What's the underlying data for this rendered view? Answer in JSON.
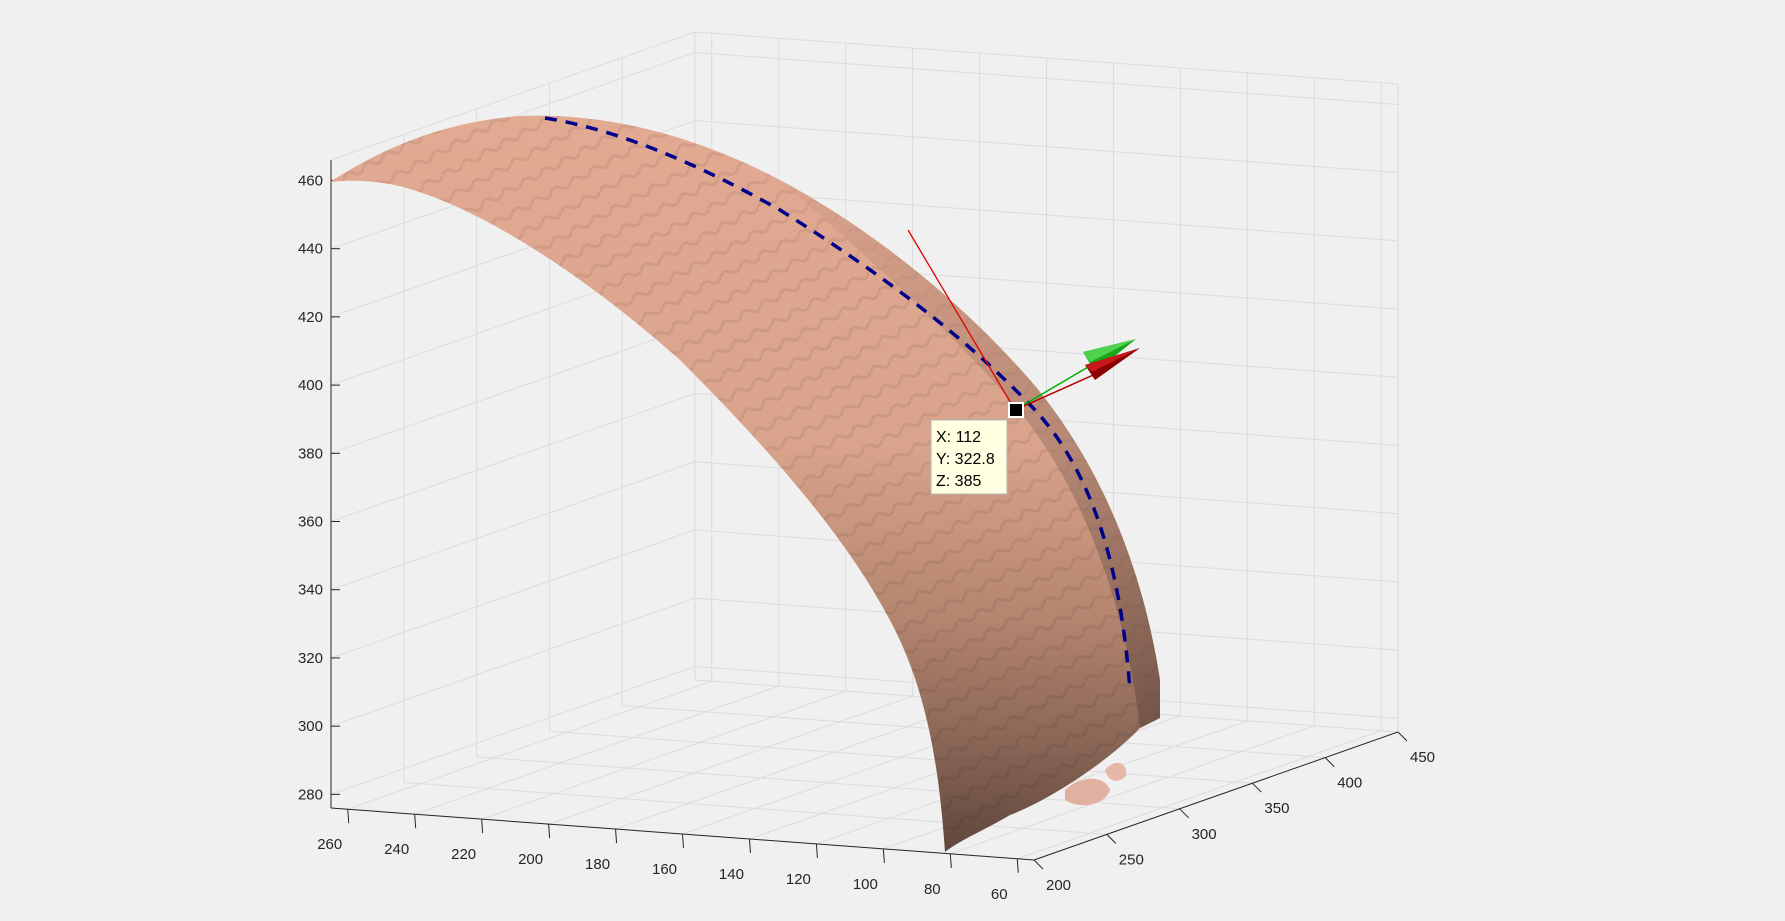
{
  "chart_data": {
    "type": "surface",
    "title": "",
    "xlabel": "",
    "ylabel": "",
    "zlabel": "",
    "grid": true,
    "axes": {
      "x": {
        "ticks": [
          60,
          80,
          100,
          120,
          140,
          160,
          180,
          200,
          220,
          240,
          260
        ],
        "range": [
          55,
          265
        ],
        "direction": "reversed"
      },
      "y": {
        "ticks": [
          200,
          250,
          300,
          350,
          400,
          450
        ],
        "range": [
          200,
          450
        ]
      },
      "z": {
        "ticks": [
          280,
          300,
          320,
          340,
          360,
          380,
          400,
          420,
          440,
          460
        ],
        "range": [
          276,
          466
        ]
      }
    },
    "series": [
      {
        "kind": "surface",
        "color": "#e2a890",
        "shade_color": "#6e5248"
      },
      {
        "kind": "dashed-curve",
        "color": "#00008b"
      },
      {
        "kind": "vector",
        "color": "#00aa00"
      },
      {
        "kind": "vector",
        "color": "#aa0000"
      },
      {
        "kind": "line",
        "color": "#e00000"
      }
    ],
    "datatip": {
      "x_label": "X: 112",
      "y_label": "Y: 322.8",
      "z_label": "Z: 385",
      "x": 112,
      "y": 322.8,
      "z": 385
    }
  }
}
